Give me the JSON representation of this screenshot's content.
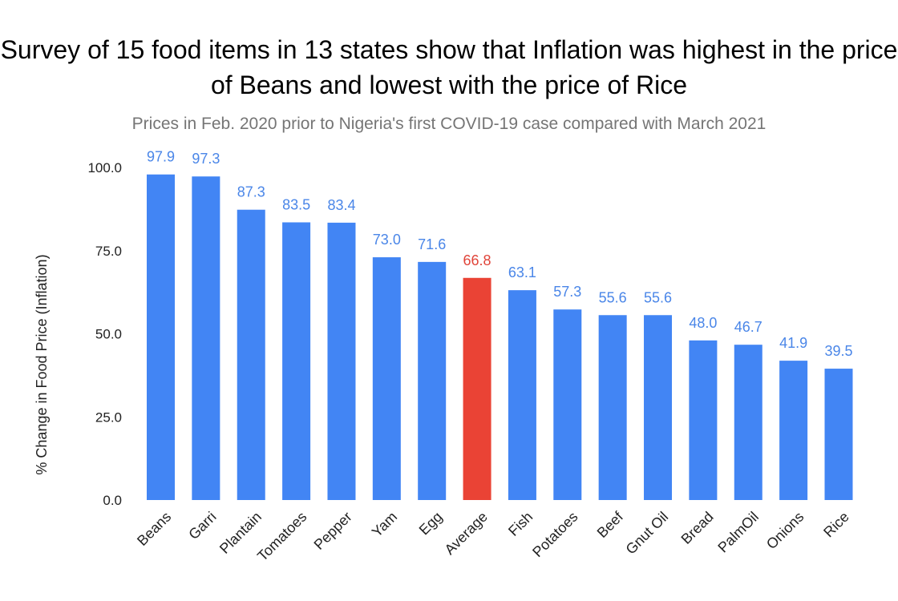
{
  "chart_data": {
    "type": "bar",
    "title": "Survey of  15 food items in 13 states show that Inflation was highest in the price of Beans and lowest with the price of Rice",
    "subtitle": "Prices in Feb. 2020 prior to Nigeria's first COVID-19 case compared with March 2021",
    "ylabel": "% Change in  Food Price (Inflation)",
    "xlabel": "",
    "ylim": [
      0,
      100
    ],
    "yticks": [
      "0.0",
      "25.0",
      "50.0",
      "75.0",
      "100.0"
    ],
    "categories": [
      "Beans",
      "Garri",
      "Plantain",
      "Tomatoes",
      "Pepper",
      "Yam",
      "Egg",
      "Average",
      "Fish",
      "Potatoes",
      "Beef",
      "Gnut Oil",
      "Bread",
      "PalmOil",
      "Onions",
      "Rice"
    ],
    "values": [
      97.9,
      97.3,
      87.3,
      83.5,
      83.4,
      73.0,
      71.6,
      66.8,
      63.1,
      57.3,
      55.6,
      55.6,
      48.0,
      46.7,
      41.9,
      39.5
    ],
    "value_labels": [
      "97.9",
      "97.3",
      "87.3",
      "83.5",
      "83.4",
      "73.0",
      "71.6",
      "66.8",
      "63.1",
      "57.3",
      "55.6",
      "55.6",
      "48.0",
      "46.7",
      "41.9",
      "39.5"
    ],
    "highlight_category": "Average",
    "grid": false,
    "legend": "none",
    "colors": {
      "bar": "#4285f4",
      "highlight": "#ea4335",
      "label": "#4a86e8",
      "highlight_label": "#e0453a"
    }
  }
}
